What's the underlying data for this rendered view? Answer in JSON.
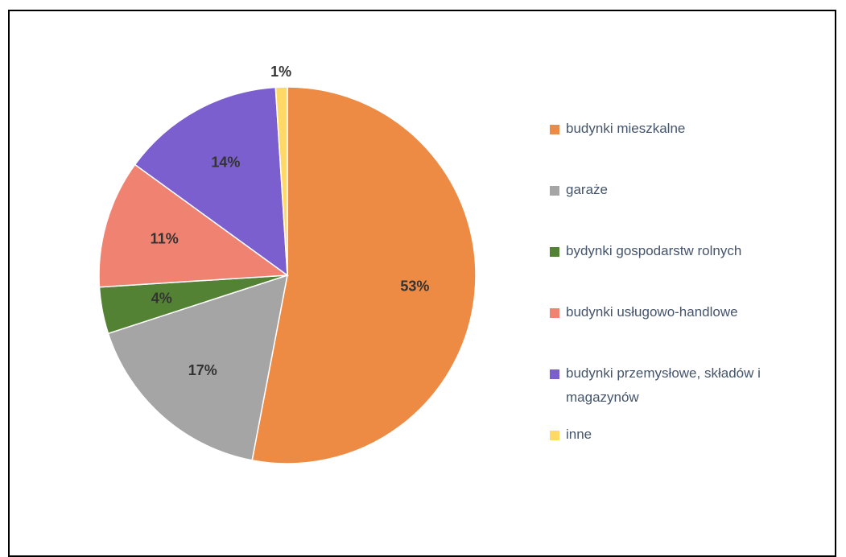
{
  "chart_data": {
    "type": "pie",
    "categories": [
      "budynki mieszkalne",
      "garaże",
      "bydynki gospodarstw rolnych",
      "budynki usługowo-handlowe",
      "budynki przemysłowe, składów i magazynów",
      "inne"
    ],
    "values": [
      53,
      17,
      4,
      11,
      14,
      1
    ],
    "value_labels": [
      "53%",
      "17%",
      "4%",
      "11%",
      "14%",
      "1%"
    ],
    "colors": [
      "#ed8b45",
      "#a5a5a5",
      "#548235",
      "#f08272",
      "#7b5fcf",
      "#ffd966"
    ],
    "legend": "right"
  }
}
